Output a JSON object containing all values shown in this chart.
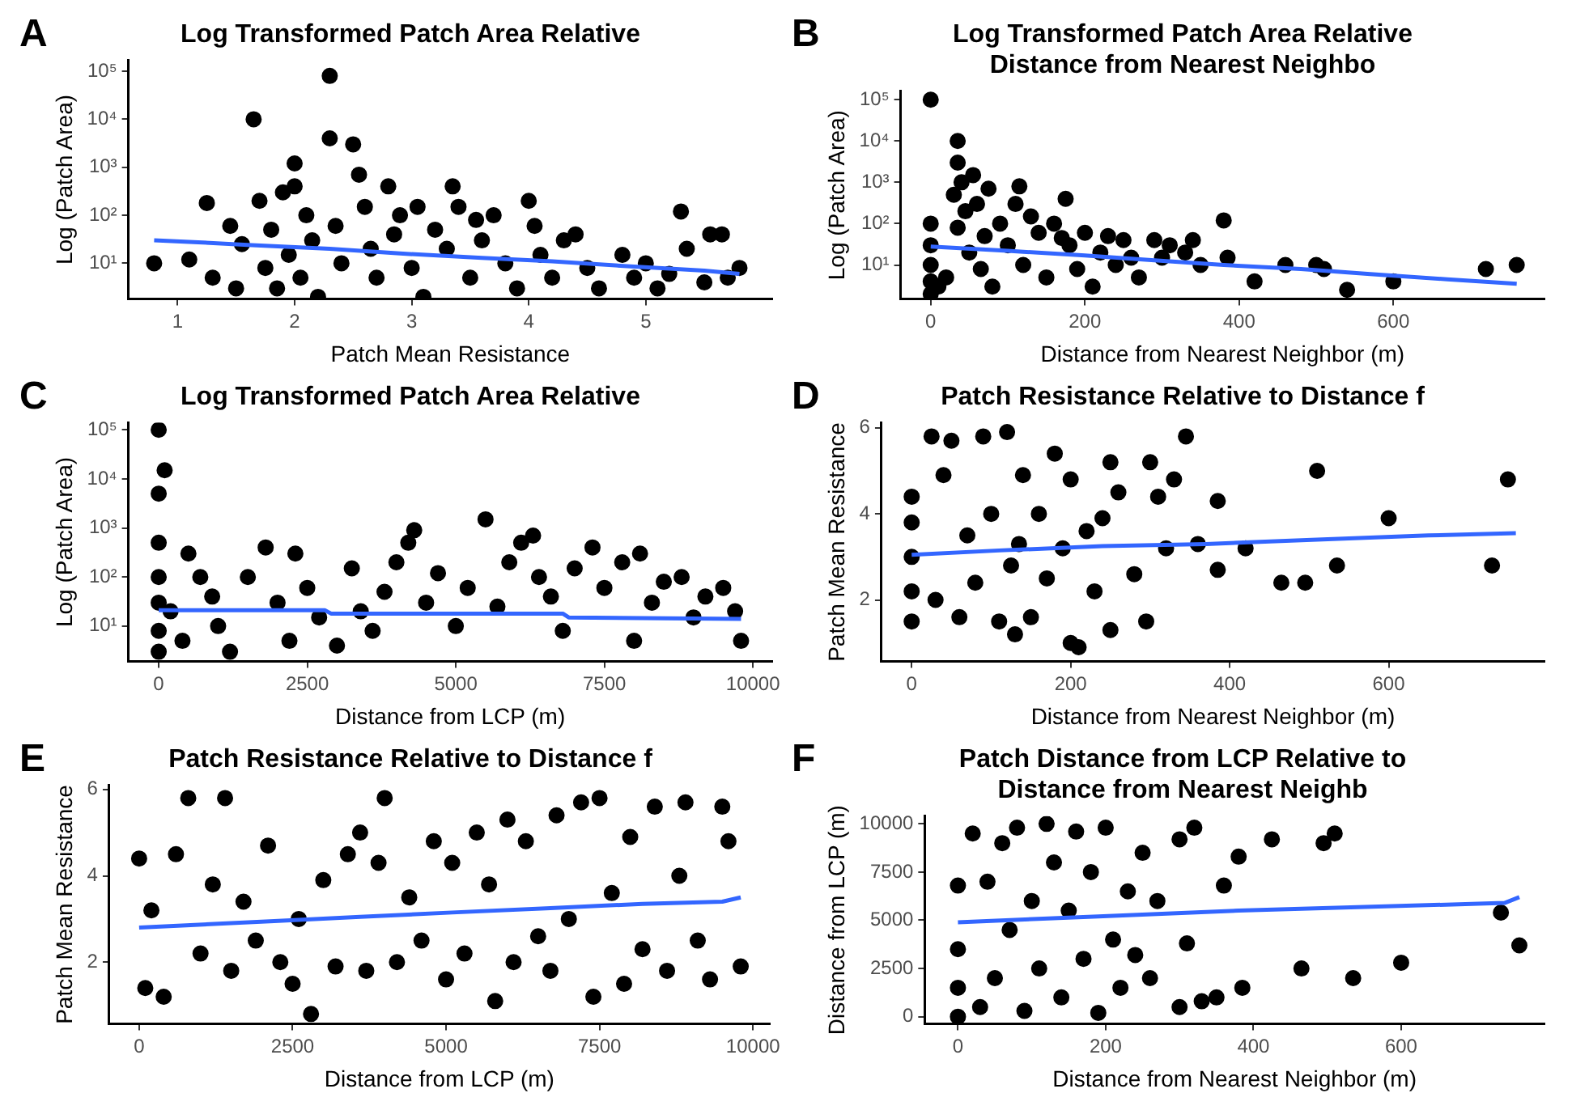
{
  "chart_data": [
    {
      "type": "scatter",
      "title": "Log Transformed Patch Area Relative",
      "xlabel": "Patch Mean Resistance",
      "ylabel": "Log (Patch Area)",
      "annotations": [
        "A"
      ],
      "log": "y",
      "grid": false,
      "legend": false,
      "xlim": [
        0.58,
        6.08
      ],
      "xticks": [
        1,
        2,
        3,
        4,
        5
      ],
      "ylim": [
        1.8,
        170000
      ],
      "yticks": [
        {
          "value": 10,
          "label": "10¹"
        },
        {
          "value": 100,
          "label": "10²"
        },
        {
          "value": 1000,
          "label": "10³"
        },
        {
          "value": 10000,
          "label": "10⁴"
        },
        {
          "value": 100000,
          "label": "10⁵"
        }
      ],
      "series": [
        {
          "marker": "circle",
          "color": "#000000",
          "x": [
            0.8,
            1.1,
            1.25,
            1.3,
            1.45,
            1.5,
            1.55,
            1.65,
            1.7,
            1.75,
            1.8,
            1.85,
            1.9,
            1.95,
            2.0,
            2.0,
            2.05,
            2.1,
            2.15,
            2.2,
            2.3,
            2.3,
            2.35,
            2.4,
            2.5,
            2.55,
            2.6,
            2.65,
            2.7,
            2.8,
            2.85,
            2.9,
            3.0,
            3.05,
            3.1,
            3.2,
            3.3,
            3.35,
            3.4,
            3.5,
            3.55,
            3.6,
            3.7,
            3.8,
            3.9,
            4.0,
            4.05,
            4.1,
            4.2,
            4.3,
            4.4,
            4.5,
            4.6,
            4.8,
            4.9,
            5.0,
            5.1,
            5.2,
            5.3,
            5.35,
            5.5,
            5.55,
            5.65,
            5.7,
            5.8
          ],
          "values": [
            10,
            12,
            180,
            5,
            60,
            3,
            25,
            10000,
            200,
            8,
            50,
            3,
            300,
            15,
            1200,
            400,
            5,
            100,
            30,
            2,
            80000,
            4000,
            60,
            10,
            3000,
            700,
            150,
            20,
            5,
            400,
            40,
            100,
            8,
            150,
            2,
            50,
            20,
            400,
            150,
            5,
            80,
            30,
            100,
            10,
            3,
            200,
            60,
            15,
            5,
            30,
            40,
            8,
            3,
            15,
            5,
            10,
            3,
            6,
            120,
            20,
            4,
            40,
            40,
            5,
            8
          ]
        },
        {
          "type": "line",
          "color": "#3366ff",
          "x": [
            0.8,
            1.1,
            1.6,
            2.3,
            2.9,
            3.6,
            4.2,
            4.9,
            5.5,
            5.8
          ],
          "values": [
            30,
            28,
            24,
            20,
            16,
            13,
            11,
            8.5,
            7,
            6
          ]
        }
      ]
    },
    {
      "type": "scatter",
      "title": "Log Transformed Patch Area Relative\nDistance from Nearest Neighbo",
      "xlabel": "Distance from Nearest Neighbor (m)",
      "ylabel": "Log (Patch Area)",
      "annotations": [
        "B"
      ],
      "log": "y",
      "grid": false,
      "legend": false,
      "xlim": [
        -39,
        796
      ],
      "xticks": [
        0,
        200,
        400,
        600
      ],
      "ylim": [
        1.5,
        160000
      ],
      "yticks": [
        {
          "value": 10,
          "label": "10¹"
        },
        {
          "value": 100,
          "label": "10²"
        },
        {
          "value": 1000,
          "label": "10³"
        },
        {
          "value": 10000,
          "label": "10⁴"
        },
        {
          "value": 100000,
          "label": "10⁵"
        }
      ],
      "series": [
        {
          "marker": "circle",
          "color": "#000000",
          "x": [
            0,
            0,
            0,
            0,
            0,
            0,
            10,
            20,
            30,
            35,
            35,
            35,
            40,
            45,
            50,
            55,
            60,
            65,
            70,
            75,
            80,
            90,
            100,
            110,
            115,
            120,
            130,
            140,
            150,
            160,
            170,
            175,
            180,
            190,
            200,
            210,
            220,
            230,
            240,
            250,
            260,
            270,
            290,
            300,
            310,
            330,
            340,
            350,
            380,
            385,
            420,
            460,
            500,
            510,
            540,
            600,
            720,
            760
          ],
          "values": [
            100000,
            100,
            30,
            10,
            4,
            2,
            3,
            5,
            500,
            10000,
            3000,
            80,
            1000,
            200,
            20,
            1500,
            300,
            8,
            50,
            700,
            3,
            100,
            30,
            300,
            800,
            10,
            150,
            60,
            5,
            100,
            45,
            400,
            30,
            8,
            60,
            3,
            20,
            50,
            10,
            40,
            15,
            5,
            40,
            15,
            30,
            20,
            40,
            10,
            120,
            15,
            4,
            10,
            10,
            8,
            2.5,
            4,
            8,
            10
          ]
        },
        {
          "type": "line",
          "color": "#3366ff",
          "x": [
            0,
            100,
            200,
            290,
            380,
            480,
            570,
            670,
            760
          ],
          "values": [
            28,
            22,
            17,
            13,
            10,
            8,
            6,
            4.5,
            3.5
          ]
        }
      ]
    },
    {
      "type": "scatter",
      "title": "Log Transformed Patch Area Relative",
      "xlabel": "Distance from LCP (m)",
      "ylabel": "Log (Patch Area)",
      "annotations": [
        "C"
      ],
      "log": "y",
      "grid": false,
      "legend": false,
      "xlim": [
        -510,
        10320
      ],
      "xticks": [
        0,
        2500,
        5000,
        7500,
        10000
      ],
      "ylim": [
        1.9,
        140000
      ],
      "yticks": [
        {
          "value": 10,
          "label": "10¹"
        },
        {
          "value": 100,
          "label": "10²"
        },
        {
          "value": 1000,
          "label": "10³"
        },
        {
          "value": 10000,
          "label": "10⁴"
        },
        {
          "value": 100000,
          "label": "10⁵"
        }
      ],
      "series": [
        {
          "marker": "circle",
          "color": "#000000",
          "x": [
            0,
            0,
            0,
            0,
            0,
            0,
            0,
            100,
            200,
            400,
            500,
            700,
            900,
            1000,
            1200,
            1500,
            1800,
            2000,
            2200,
            2300,
            2500,
            2700,
            3000,
            3250,
            3400,
            3600,
            3800,
            4000,
            4200,
            4300,
            4500,
            4700,
            5000,
            5200,
            5500,
            5700,
            5900,
            6100,
            6300,
            6400,
            6600,
            6800,
            7000,
            7300,
            7500,
            7800,
            8000,
            8100,
            8300,
            8500,
            8800,
            9000,
            9200,
            9500,
            9700,
            9800
          ],
          "values": [
            100000,
            5000,
            500,
            100,
            30,
            8,
            3,
            15000,
            20,
            5,
            300,
            100,
            40,
            10,
            3,
            100,
            400,
            30,
            5,
            300,
            60,
            15,
            4,
            150,
            20,
            8,
            50,
            200,
            500,
            900,
            30,
            120,
            10,
            60,
            1500,
            25,
            200,
            500,
            700,
            100,
            40,
            8,
            150,
            400,
            60,
            200,
            5,
            300,
            30,
            80,
            100,
            15,
            40,
            60,
            20,
            5
          ]
        },
        {
          "type": "line",
          "color": "#3366ff",
          "x": [
            0,
            2800,
            2900,
            6800,
            6900,
            9800
          ],
          "values": [
            21,
            21,
            18,
            18,
            15,
            14
          ]
        }
      ]
    },
    {
      "type": "scatter",
      "title": "Patch Resistance Relative to Distance f",
      "xlabel": "Distance from Nearest Neighbor (m)",
      "ylabel": "Patch Mean Resistance",
      "annotations": [
        "D"
      ],
      "grid": false,
      "legend": false,
      "xlim": [
        -38,
        796
      ],
      "xticks": [
        0,
        200,
        400,
        600
      ],
      "ylim": [
        0.57,
        6.12
      ],
      "yticks": [
        2,
        4,
        6
      ],
      "series": [
        {
          "marker": "circle",
          "color": "#000000",
          "x": [
            0,
            0,
            0,
            0,
            0,
            25,
            30,
            40,
            50,
            60,
            70,
            80,
            90,
            100,
            110,
            120,
            125,
            130,
            135,
            140,
            150,
            160,
            170,
            180,
            190,
            200,
            200,
            210,
            220,
            230,
            240,
            250,
            250,
            260,
            280,
            295,
            300,
            310,
            320,
            330,
            345,
            360,
            385,
            385,
            420,
            465,
            495,
            510,
            535,
            600,
            730,
            750
          ],
          "values": [
            1.5,
            2.2,
            3.0,
            3.8,
            4.4,
            5.8,
            2.0,
            4.9,
            5.7,
            1.6,
            3.5,
            2.4,
            5.8,
            4.0,
            1.5,
            5.9,
            2.8,
            1.2,
            3.3,
            4.9,
            1.6,
            4.0,
            2.5,
            5.4,
            3.2,
            1.0,
            4.8,
            0.9,
            3.6,
            2.2,
            3.9,
            1.3,
            5.2,
            4.5,
            2.6,
            1.5,
            5.2,
            4.4,
            3.2,
            4.8,
            5.8,
            3.3,
            4.3,
            2.7,
            3.2,
            2.4,
            2.4,
            5.0,
            2.8,
            3.9,
            2.8,
            4.8
          ]
        },
        {
          "type": "line",
          "color": "#3366ff",
          "x": [
            0,
            110,
            240,
            370,
            510,
            650,
            760
          ],
          "values": [
            3.05,
            3.15,
            3.25,
            3.3,
            3.4,
            3.5,
            3.55
          ]
        }
      ]
    },
    {
      "type": "scatter",
      "title": "Patch Resistance Relative to Distance f",
      "xlabel": "Distance from LCP (m)",
      "ylabel": "Patch Mean Resistance",
      "annotations": [
        "E"
      ],
      "grid": false,
      "legend": false,
      "xlim": [
        -487,
        10270
      ],
      "xticks": [
        0,
        2500,
        5000,
        7500,
        10000
      ],
      "ylim": [
        0.57,
        6.1
      ],
      "yticks": [
        2,
        4,
        6
      ],
      "series": [
        {
          "marker": "circle",
          "color": "#000000",
          "x": [
            0,
            100,
            200,
            400,
            600,
            800,
            1000,
            1200,
            1400,
            1500,
            1700,
            1900,
            2100,
            2300,
            2500,
            2600,
            2800,
            3000,
            3200,
            3400,
            3600,
            3700,
            3900,
            4000,
            4200,
            4400,
            4600,
            4800,
            5000,
            5100,
            5300,
            5500,
            5700,
            5800,
            6000,
            6100,
            6300,
            6500,
            6700,
            6800,
            7000,
            7200,
            7400,
            7500,
            7700,
            7900,
            8000,
            8200,
            8400,
            8600,
            8800,
            8900,
            9100,
            9300,
            9500,
            9600,
            9800
          ],
          "values": [
            4.4,
            1.4,
            3.2,
            1.2,
            4.5,
            5.8,
            2.2,
            3.8,
            5.8,
            1.8,
            3.4,
            2.5,
            4.7,
            2.0,
            1.5,
            3.0,
            0.8,
            3.9,
            1.9,
            4.5,
            5.0,
            1.8,
            4.3,
            5.8,
            2.0,
            3.5,
            2.5,
            4.8,
            1.6,
            4.3,
            2.2,
            5.0,
            3.8,
            1.1,
            5.3,
            2.0,
            4.8,
            2.6,
            1.8,
            5.4,
            3.0,
            5.7,
            1.2,
            5.8,
            3.6,
            1.5,
            4.9,
            2.3,
            5.6,
            1.8,
            4.0,
            5.7,
            2.5,
            1.6,
            5.6,
            4.8,
            1.9
          ]
        },
        {
          "type": "line",
          "color": "#3366ff",
          "x": [
            0,
            700,
            2200,
            3600,
            5100,
            6700,
            8200,
            9500,
            9800
          ],
          "values": [
            2.8,
            2.85,
            2.95,
            3.05,
            3.15,
            3.25,
            3.35,
            3.4,
            3.5
          ]
        }
      ]
    },
    {
      "type": "scatter",
      "title": "Patch Distance from LCP Relative to\nDistance from Nearest Neighb",
      "xlabel": "Distance from Nearest Neighbor (m)",
      "ylabel": "Distance from LCP (m)",
      "annotations": [
        "F"
      ],
      "grid": false,
      "legend": false,
      "xlim": [
        -45,
        794
      ],
      "xticks": [
        0,
        200,
        400,
        600
      ],
      "ylim": [
        -375,
        10400
      ],
      "yticks": [
        0,
        2500,
        5000,
        7500,
        10000
      ],
      "series": [
        {
          "marker": "circle",
          "color": "#000000",
          "x": [
            0,
            0,
            0,
            0,
            20,
            30,
            40,
            50,
            60,
            70,
            80,
            90,
            100,
            110,
            120,
            130,
            140,
            150,
            160,
            170,
            180,
            190,
            200,
            210,
            220,
            230,
            240,
            250,
            260,
            270,
            300,
            300,
            310,
            320,
            330,
            350,
            360,
            380,
            385,
            425,
            465,
            495,
            510,
            535,
            600,
            735,
            760
          ],
          "values": [
            0,
            1500,
            3500,
            6800,
            9500,
            500,
            7000,
            2000,
            9000,
            4500,
            9800,
            300,
            6000,
            2500,
            10000,
            8000,
            1000,
            5500,
            9600,
            3000,
            7500,
            200,
            9800,
            4000,
            1500,
            6500,
            3200,
            8500,
            2000,
            6000,
            500,
            9200,
            3800,
            9800,
            800,
            1000,
            6800,
            8300,
            1500,
            9200,
            2500,
            9000,
            9500,
            2000,
            2800,
            5400,
            3700
          ]
        },
        {
          "type": "line",
          "color": "#3366ff",
          "x": [
            0,
            190,
            380,
            560,
            740,
            760
          ],
          "values": [
            4900,
            5200,
            5500,
            5700,
            5900,
            6200
          ]
        }
      ]
    }
  ]
}
